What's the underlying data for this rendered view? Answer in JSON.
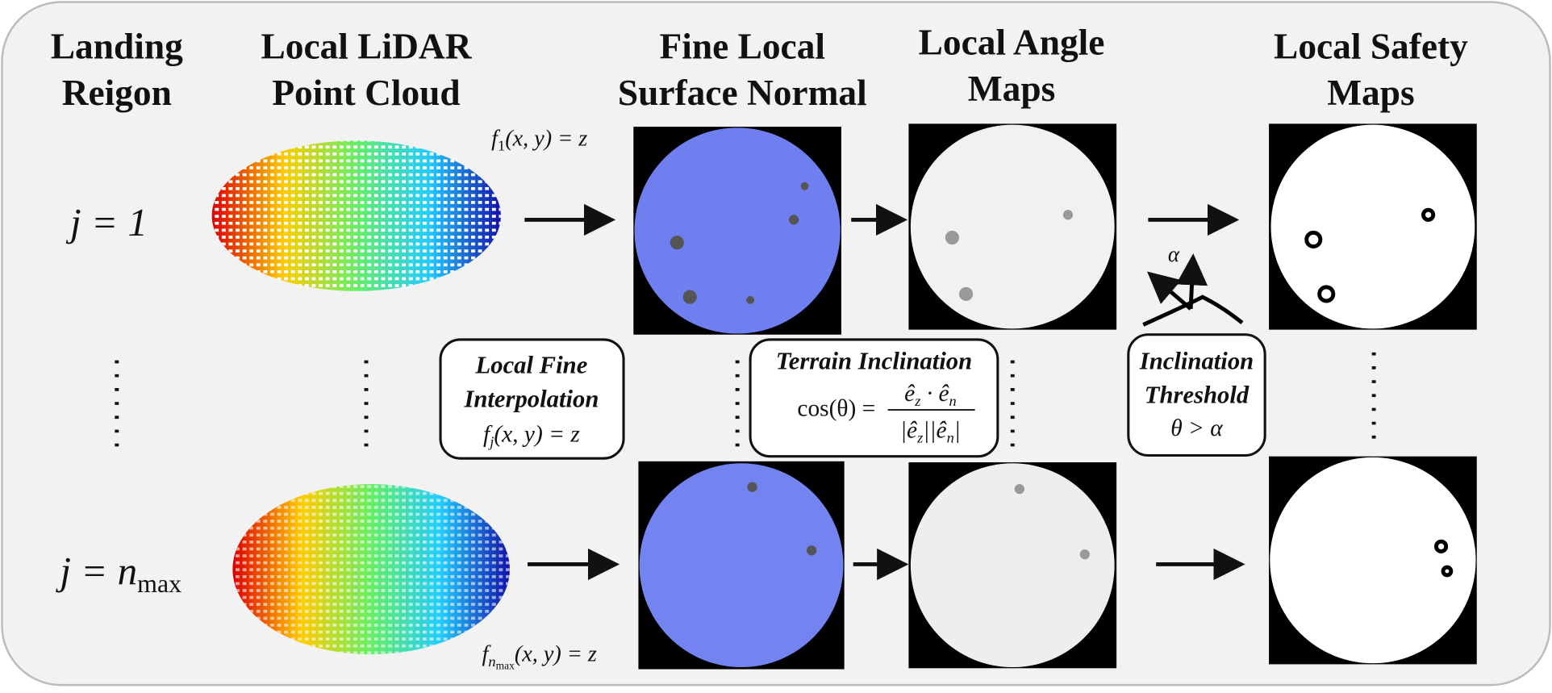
{
  "headers": [
    [
      "Landing",
      "Reigon"
    ],
    [
      "Local LiDAR",
      "Point Cloud"
    ],
    [
      "Fine Local",
      "Surface Normal"
    ],
    [
      "Local Angle",
      "Maps"
    ],
    [
      "Local Safety",
      "Maps"
    ]
  ],
  "rows": [
    {
      "main": "j = 1"
    },
    {
      "main": "j = n",
      "sub": "max"
    }
  ],
  "formulas": [
    {
      "f": "f",
      "sub": "1",
      "rest": "(x, y) = z"
    },
    {
      "f": "f",
      "sub": "n",
      "subsub": "max",
      "rest": "(x, y) = z"
    }
  ],
  "boxes": [
    {
      "title": [
        "Local Fine",
        "Interpolation"
      ],
      "f": "f",
      "sub": "j",
      "rest": "(x, y) = z"
    },
    {
      "title": [
        "Terrain Inclination"
      ],
      "lhs": "cos(θ) =",
      "num": "ê",
      "num_sub1": "z",
      "num_mid": " · ê",
      "num_sub2": "n",
      "den": "|ê",
      "den_sub1": "z",
      "den_mid": "||ê",
      "den_sub2": "n",
      "den_end": "|"
    },
    {
      "title": [
        "Inclination",
        "Threshold"
      ],
      "cond": "θ > α"
    }
  ],
  "angle_label": "α"
}
